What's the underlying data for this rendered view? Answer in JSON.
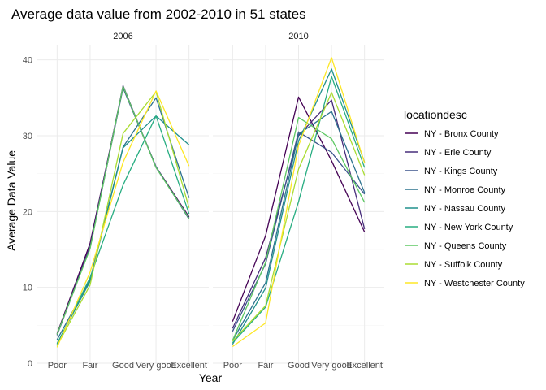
{
  "chart_data": {
    "type": "line",
    "title": "Average data value from 2002-2010 in 51 states",
    "xlabel": "Year",
    "ylabel": "Average Data Value",
    "categories": [
      "Poor",
      "Fair",
      "Good",
      "Very good",
      "Excellent"
    ],
    "ylim": [
      0,
      42
    ],
    "yticks": [
      0,
      10,
      20,
      30,
      40
    ],
    "grid": true,
    "legend": {
      "title": "locationdesc",
      "placement": "right"
    },
    "facets": [
      "2006",
      "2010"
    ],
    "series": [
      {
        "name": "NY - Bronx County",
        "color": "#440154",
        "values": {
          "2006": [
            3.9,
            15.8,
            36.4,
            25.9,
            19.3
          ],
          "2010": [
            5.5,
            16.8,
            35.1,
            26.7,
            17.3
          ]
        }
      },
      {
        "name": "NY - Erie County",
        "color": "#472D7B",
        "values": {
          "2006": [
            3.8,
            15.4,
            36.6,
            25.8,
            19.2
          ],
          "2010": [
            4.6,
            13.9,
            30.0,
            34.7,
            17.7
          ]
        }
      },
      {
        "name": "NY - Kings County",
        "color": "#3B528B",
        "values": {
          "2006": [
            3.7,
            15.2,
            36.3,
            25.9,
            19.0
          ],
          "2010": [
            4.2,
            13.1,
            30.5,
            27.8,
            22.3
          ]
        }
      },
      {
        "name": "NY - Monroe County",
        "color": "#2C728E",
        "values": {
          "2006": [
            3.1,
            11.0,
            28.5,
            35.0,
            21.8
          ],
          "2010": [
            3.0,
            10.6,
            30.2,
            33.2,
            22.5
          ]
        }
      },
      {
        "name": "NY - Nassau County",
        "color": "#21908C",
        "values": {
          "2006": [
            2.6,
            10.8,
            28.4,
            32.6,
            28.8
          ],
          "2010": [
            2.5,
            9.9,
            29.3,
            38.8,
            26.5
          ]
        }
      },
      {
        "name": "NY - New York County",
        "color": "#27AD81",
        "values": {
          "2006": [
            2.5,
            11.3,
            23.5,
            32.6,
            19.7
          ],
          "2010": [
            2.7,
            7.4,
            21.3,
            37.8,
            25.8
          ]
        }
      },
      {
        "name": "NY - Queens County",
        "color": "#5DC863",
        "values": {
          "2006": [
            3.8,
            15.1,
            36.5,
            25.8,
            19.1
          ],
          "2010": [
            3.0,
            13.3,
            32.4,
            29.6,
            21.2
          ]
        }
      },
      {
        "name": "NY - Suffolk County",
        "color": "#AADC32",
        "values": {
          "2006": [
            2.3,
            10.3,
            30.3,
            35.8,
            20.5
          ],
          "2010": [
            2.9,
            7.6,
            25.6,
            35.7,
            24.8
          ]
        }
      },
      {
        "name": "NY - Westchester County",
        "color": "#FDE725",
        "values": {
          "2006": [
            2.1,
            12.0,
            26.5,
            35.9,
            26.0
          ],
          "2010": [
            2.2,
            5.3,
            28.7,
            40.3,
            26.4
          ]
        }
      }
    ]
  }
}
